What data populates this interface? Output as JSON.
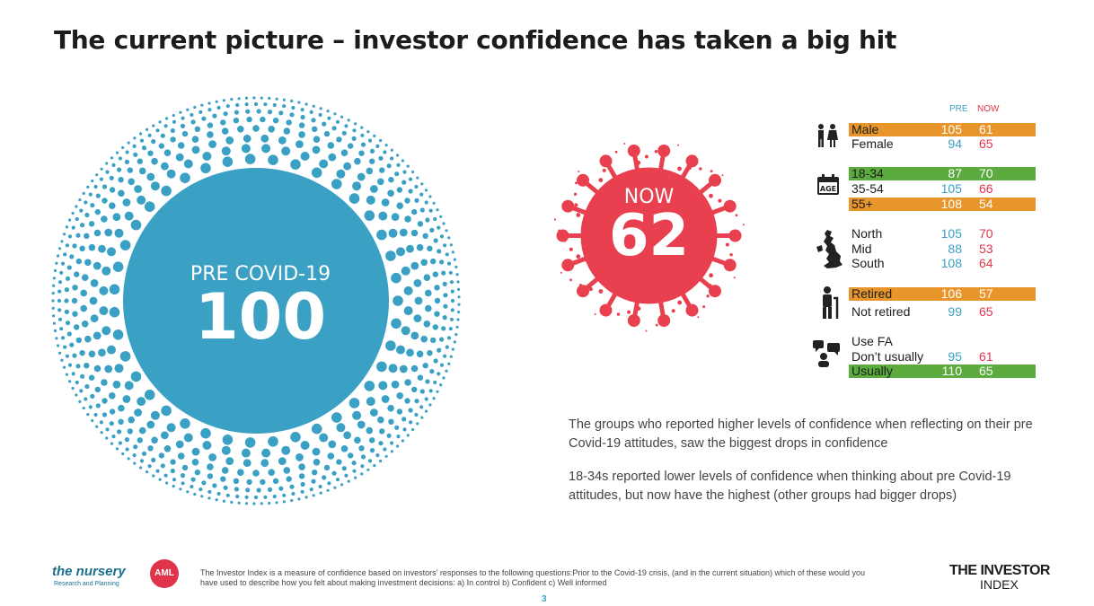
{
  "title": "The current picture – investor confidence has taken a big hit",
  "pre_covid": {
    "label": "PRE COVID-19",
    "value": "100"
  },
  "now": {
    "label": "NOW",
    "value": "62"
  },
  "table": {
    "header_pre": "PRE",
    "header_now": "NOW",
    "groups": [
      {
        "icon": "gender-icon",
        "rows": [
          {
            "label": "Male",
            "pre": "105",
            "now": "61",
            "highlight": "orange"
          },
          {
            "label": "Female",
            "pre": "94",
            "now": "65",
            "highlight": "none"
          }
        ]
      },
      {
        "icon": "calendar-age-icon",
        "rows": [
          {
            "label": "18-34",
            "pre": "87",
            "now": "70",
            "highlight": "green"
          },
          {
            "label": "35-54",
            "pre": "105",
            "now": "66",
            "highlight": "none"
          },
          {
            "label": "55+",
            "pre": "108",
            "now": "54",
            "highlight": "orange"
          }
        ]
      },
      {
        "icon": "uk-map-icon",
        "rows": [
          {
            "label": "North",
            "pre": "105",
            "now": "70",
            "highlight": "none"
          },
          {
            "label": "Mid",
            "pre": "88",
            "now": "53",
            "highlight": "none"
          },
          {
            "label": "South",
            "pre": "108",
            "now": "64",
            "highlight": "none"
          }
        ]
      },
      {
        "icon": "retired-person-icon",
        "rows": [
          {
            "label": "Retired",
            "pre": "106",
            "now": "57",
            "highlight": "orange"
          },
          {
            "label": "Not retired",
            "pre": "99",
            "now": "65",
            "highlight": "none"
          }
        ]
      },
      {
        "icon": "advisor-chat-icon",
        "rows": [
          {
            "label": "Use FA",
            "pre": "",
            "now": "",
            "highlight": "none"
          },
          {
            "label": "Don’t usually",
            "pre": "95",
            "now": "61",
            "highlight": "none"
          },
          {
            "label": "Usually",
            "pre": "110",
            "now": "65",
            "highlight": "green"
          }
        ]
      }
    ]
  },
  "paragraphs": [
    "The groups who reported higher levels of confidence when reflecting on their pre Covid-19 attitudes, saw the biggest drops in confidence",
    "18-34s reported lower levels of confidence when thinking about pre Covid-19 attitudes, but now have the highest (other groups had bigger drops)"
  ],
  "footer": {
    "nursery_logo": "the nursery",
    "nursery_sub": "Research and Planning",
    "aml_logo": "AML",
    "footnote": "The Investor Index is a measure of confidence based on investors’ responses to the following questions:Prior to the Covid-19 crisis, (and in the current situation) which of these would you have used to describe how you felt about making investment decisions: a) In control  b) Confident c) Well informed",
    "investor_logo_line1": "THE INVESTOR",
    "investor_logo_line2": "INDEX",
    "page_number": "3"
  },
  "colors": {
    "blue": "#3aa0c4",
    "red": "#e8404f",
    "orange": "#e8962b",
    "green": "#5cab3f"
  }
}
